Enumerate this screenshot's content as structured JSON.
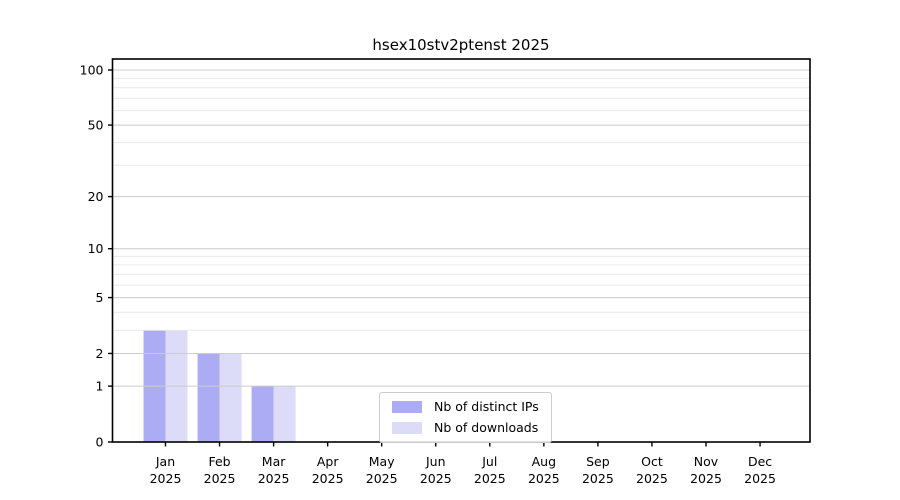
{
  "chart_data": {
    "type": "bar",
    "title": "hsex10stv2ptenst 2025",
    "categories": [
      "Jan",
      "Feb",
      "Mar",
      "Apr",
      "May",
      "Jun",
      "Jul",
      "Aug",
      "Sep",
      "Oct",
      "Nov",
      "Dec"
    ],
    "category_year": "2025",
    "series": [
      {
        "name": "Nb of distinct IPs",
        "color": "#acacf4",
        "values": [
          3,
          2,
          1,
          0,
          0,
          0,
          0,
          0,
          0,
          0,
          0,
          0
        ]
      },
      {
        "name": "Nb of downloads",
        "color": "#dcdcf8",
        "values": [
          3,
          2,
          1,
          0,
          0,
          0,
          0,
          0,
          0,
          0,
          0,
          0
        ]
      }
    ],
    "xlabel": "",
    "ylabel": "",
    "yscale": "log1p",
    "ylim": [
      0,
      115
    ],
    "yticks": [
      0,
      1,
      2,
      5,
      10,
      20,
      50,
      100
    ],
    "yticks_minor": [
      3,
      4,
      6,
      7,
      8,
      9,
      30,
      40,
      60,
      70,
      80,
      90
    ],
    "grid": "horizontal",
    "legend_position": "inside-bottom-center",
    "colors": {
      "background": "#ffffff",
      "axis": "#000000",
      "text": "#000000",
      "grid_major": "#cccccc",
      "grid_minor": "#eaeaea"
    }
  }
}
